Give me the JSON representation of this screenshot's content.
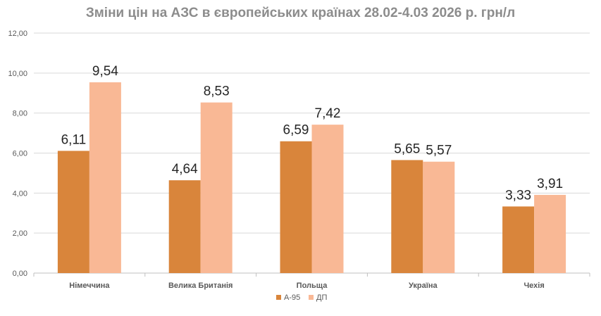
{
  "chart_data": {
    "type": "bar",
    "title": "Зміни цін на АЗС в європейських країнах 28.02-4.03 2026 р. грн/л",
    "categories": [
      "Німеччина",
      "Велика Британія",
      "Польща",
      "Україна",
      "Чехія"
    ],
    "series": [
      {
        "name": "А-95",
        "values": [
          6.11,
          4.64,
          6.59,
          5.65,
          3.33
        ],
        "value_labels": [
          "6,11",
          "4,64",
          "6,59",
          "5,65",
          "3,33"
        ],
        "color": "#d9853b"
      },
      {
        "name": "ДП",
        "values": [
          9.54,
          8.53,
          7.42,
          5.57,
          3.91
        ],
        "value_labels": [
          "9,54",
          "8,53",
          "7,42",
          "5,57",
          "3,91"
        ],
        "color": "#f9b895"
      }
    ],
    "ylim": [
      0,
      12
    ],
    "yticks": [
      0,
      2,
      4,
      6,
      8,
      10,
      12
    ],
    "ytick_labels": [
      "0,00",
      "2,00",
      "4,00",
      "6,00",
      "8,00",
      "10,00",
      "12,00"
    ],
    "xlabel": "",
    "ylabel": "",
    "grid": true,
    "legend_position": "bottom"
  }
}
